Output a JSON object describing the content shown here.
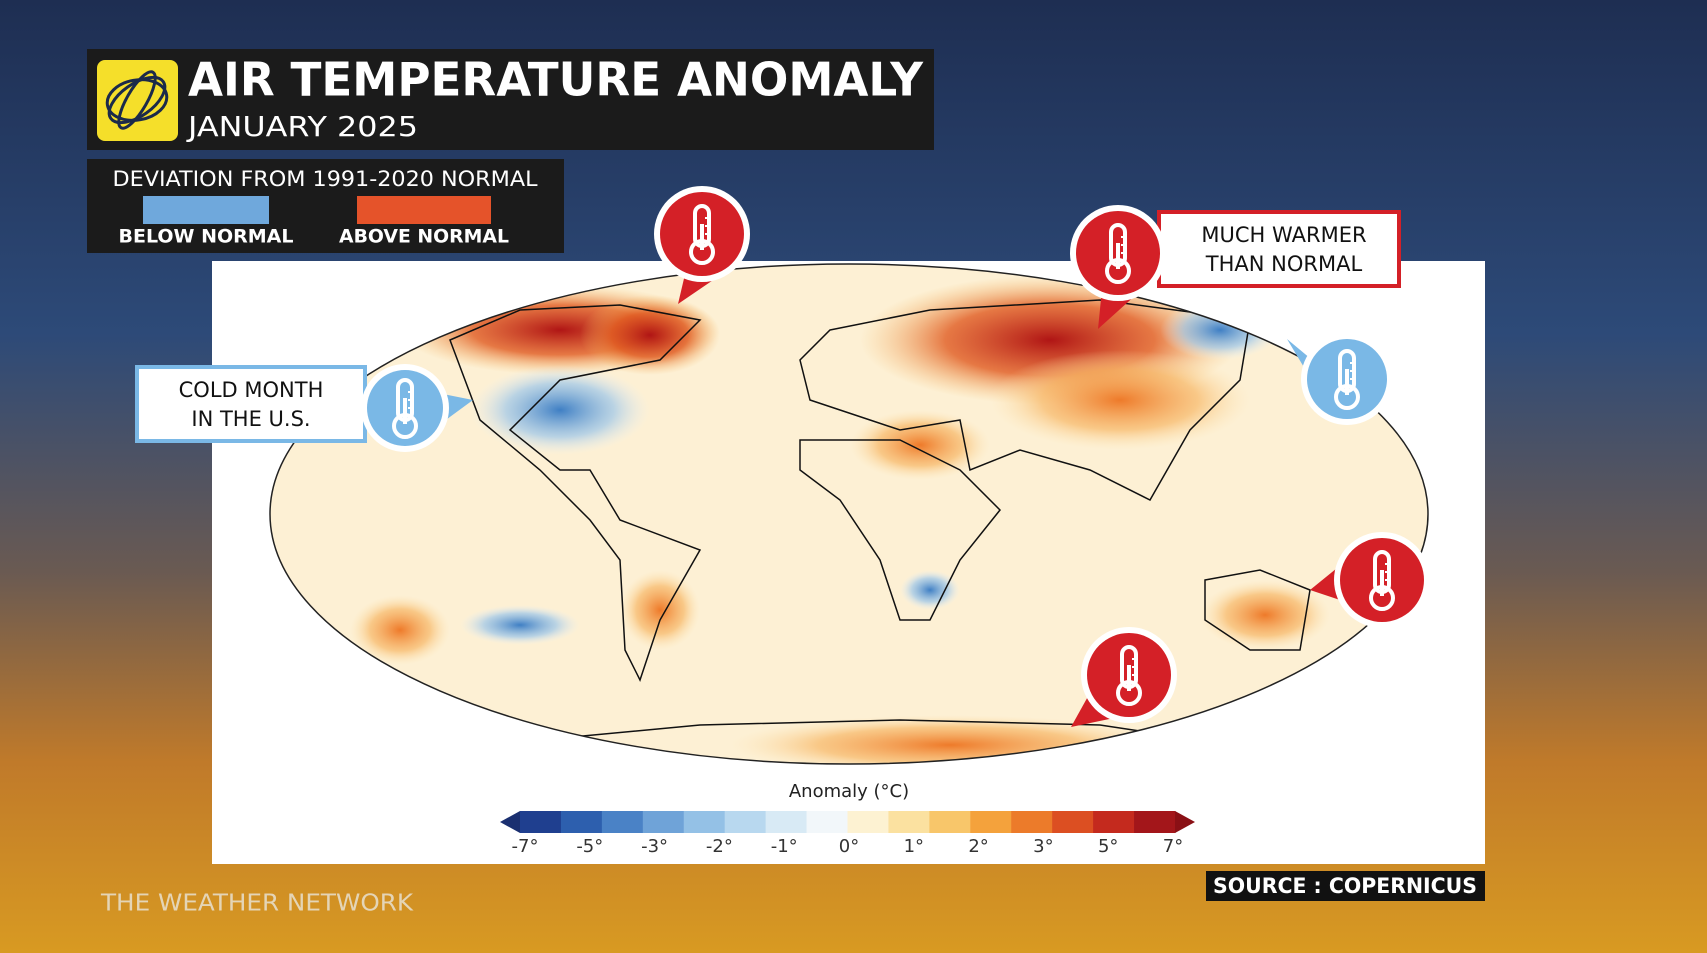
{
  "header": {
    "title": "AIR TEMPERATURE ANOMALY",
    "subtitle": "JANUARY 2025"
  },
  "legend": {
    "title": "DEVIATION FROM 1991-2020 NORMAL",
    "below": "BELOW NORMAL",
    "above": "ABOVE NORMAL"
  },
  "callouts": {
    "cold": [
      "COLD MONTH",
      "IN THE U.S."
    ],
    "warm": [
      "MUCH WARMER",
      "THAN NORMAL"
    ]
  },
  "colorbar": {
    "label": "Anomaly (°C)",
    "ticks": [
      "-7°",
      "-5°",
      "-3°",
      "-2°",
      "-1°",
      "0°",
      "1°",
      "2°",
      "3°",
      "5°",
      "7°"
    ]
  },
  "source": "SOURCE : COPERNICUS",
  "brand": "THE WEATHER NETWORK"
}
